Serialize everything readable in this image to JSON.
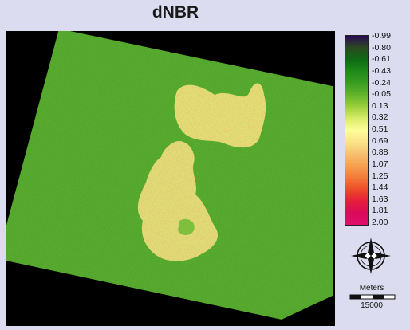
{
  "title": "dNBR",
  "legend": {
    "labels": [
      "-0.99",
      "-0.80",
      "-0.61",
      "-0.43",
      "-0.24",
      "-0.05",
      "0.13",
      "0.32",
      "0.51",
      "0.69",
      "0.88",
      "1.07",
      "1.25",
      "1.44",
      "1.63",
      "1.81",
      "2.00"
    ],
    "colors": [
      "#2a0a55",
      "#2a4a20",
      "#0e6a14",
      "#1f8a1a",
      "#3a9c22",
      "#62b32c",
      "#9ccf3c",
      "#d8ec6a",
      "#fdfd9a",
      "#fbe38a",
      "#f7c070",
      "#f5a050",
      "#f37a3a",
      "#ee4a2a",
      "#e61e3c",
      "#dc0a5a",
      "#e00e6a"
    ]
  },
  "north_arrow": {
    "icon": "north-arrow-icon"
  },
  "scale": {
    "unit": "Meters",
    "value": "15000"
  }
}
